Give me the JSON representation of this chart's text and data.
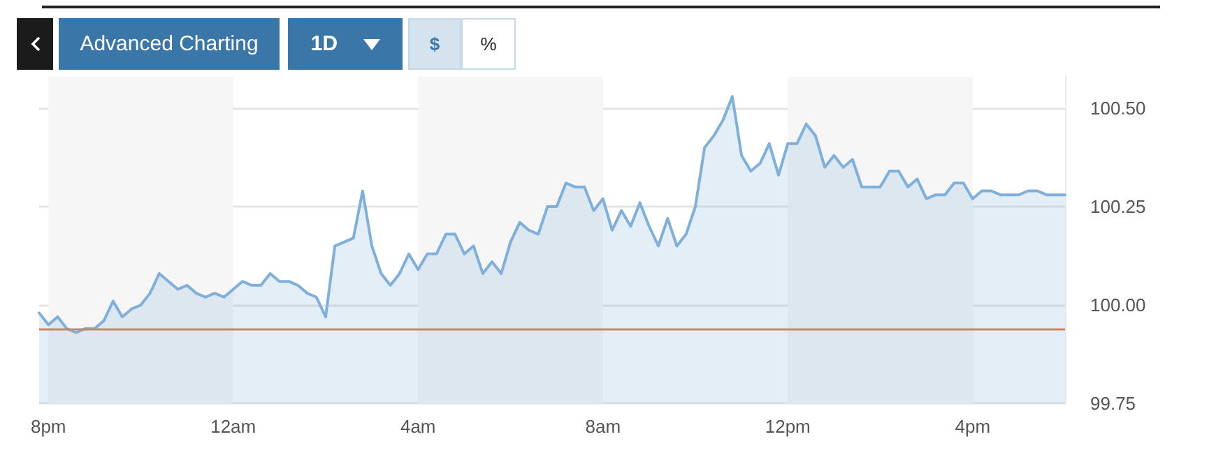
{
  "chart_data": {
    "type": "area",
    "annotations": [
      "Advanced Charting",
      "1D",
      "$",
      "%"
    ],
    "categories": [
      null,
      "8pm",
      null,
      null,
      null,
      null,
      null,
      null,
      null,
      null,
      null,
      null,
      null,
      null,
      null,
      null,
      null,
      null,
      null,
      null,
      null,
      "12am",
      null,
      null,
      null,
      null,
      null,
      null,
      null,
      null,
      null,
      null,
      null,
      null,
      null,
      null,
      null,
      null,
      null,
      null,
      null,
      "4am",
      null,
      null,
      null,
      null,
      null,
      null,
      null,
      null,
      null,
      null,
      null,
      null,
      null,
      null,
      null,
      null,
      null,
      null,
      null,
      "8am",
      null,
      null,
      null,
      null,
      null,
      null,
      null,
      null,
      null,
      null,
      null,
      null,
      null,
      null,
      null,
      null,
      null,
      null,
      null,
      "12pm",
      null,
      null,
      null,
      null,
      null,
      null,
      null,
      null,
      null,
      null,
      null,
      null,
      null,
      null,
      null,
      null,
      null,
      null,
      null,
      "4pm",
      null,
      null,
      null,
      null,
      null,
      null,
      null,
      null,
      null,
      null
    ],
    "series": [
      {
        "color": "#7fb0dc",
        "values": [
          99.98,
          99.95,
          99.97,
          99.94,
          99.93,
          99.94,
          99.94,
          99.96,
          100.01,
          99.97,
          99.99,
          100.0,
          100.03,
          100.08,
          100.06,
          100.04,
          100.05,
          100.03,
          100.02,
          100.03,
          100.02,
          100.04,
          100.06,
          100.05,
          100.05,
          100.08,
          100.06,
          100.06,
          100.05,
          100.03,
          100.02,
          99.97,
          100.15,
          100.16,
          100.17,
          100.29,
          100.15,
          100.08,
          100.05,
          100.08,
          100.13,
          100.09,
          100.13,
          100.13,
          100.18,
          100.18,
          100.13,
          100.15,
          100.08,
          100.11,
          100.08,
          100.16,
          100.21,
          100.19,
          100.18,
          100.25,
          100.25,
          100.31,
          100.3,
          100.3,
          100.24,
          100.27,
          100.19,
          100.24,
          100.2,
          100.26,
          100.2,
          100.15,
          100.22,
          100.15,
          100.18,
          100.25,
          100.4,
          100.43,
          100.47,
          100.53,
          100.38,
          100.34,
          100.36,
          100.41,
          100.33,
          100.41,
          100.41,
          100.46,
          100.43,
          100.35,
          100.38,
          100.35,
          100.37,
          100.3,
          100.3,
          100.3,
          100.34,
          100.34,
          100.3,
          100.32,
          100.27,
          100.28,
          100.28,
          100.31,
          100.31,
          100.27,
          100.29,
          100.29,
          100.28,
          100.28,
          100.28,
          100.29,
          100.29,
          100.28,
          100.28,
          100.28
        ]
      }
    ],
    "ylim": [
      99.75,
      100.58
    ],
    "yticks": [
      {
        "value": 99.75,
        "label": "99.75"
      },
      {
        "value": 100,
        "label": "100.00"
      },
      {
        "value": 100.25,
        "label": "100.25"
      },
      {
        "value": 100.5,
        "label": "100.50"
      }
    ],
    "ref_lines": [
      {
        "axis": "y",
        "value": 99.94,
        "color": "#d0845e"
      }
    ],
    "bands": [
      {
        "axis": "x",
        "from": "8pm",
        "to": "12am",
        "color": "#f6f6f6"
      },
      {
        "axis": "x",
        "from": "4am",
        "to": "8am",
        "color": "#f6f6f6"
      },
      {
        "axis": "x",
        "from": "12pm",
        "to": "4pm",
        "color": "#f6f6f6"
      }
    ],
    "grid": "y",
    "marker": "none",
    "line_style": "solid"
  }
}
